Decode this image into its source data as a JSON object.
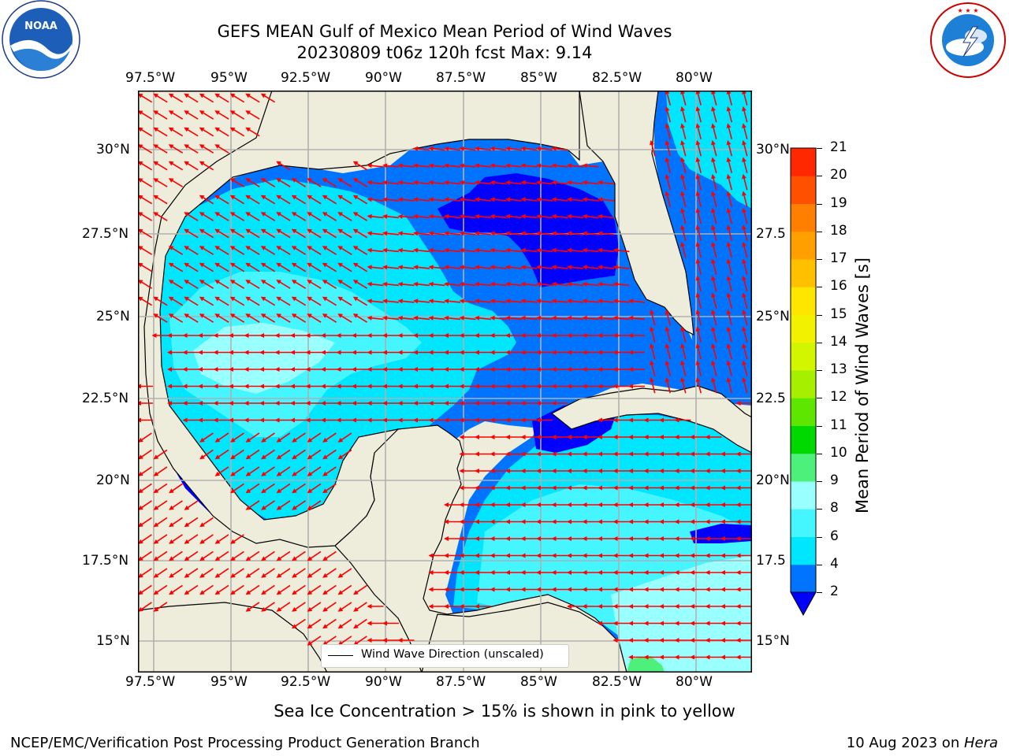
{
  "header": {
    "title_line1": "GEFS MEAN Gulf of Mexico Mean Period of Wind Waves",
    "title_line2": "20230809 t06z 120h fcst   Max: 9.14"
  },
  "logos": {
    "left": {
      "name": "noaa-logo",
      "text": "NOAA",
      "ring_text": "NATIONAL OCEANIC AND ATMOSPHERIC ADMINISTRATION · U.S. DEPARTMENT OF COMMERCE"
    },
    "right": {
      "name": "nws-logo",
      "ring_text": "NATIONAL WEATHER SERVICE"
    }
  },
  "map": {
    "lon_labels": [
      "97.5°W",
      "95°W",
      "92.5°W",
      "90°W",
      "87.5°W",
      "85°W",
      "82.5°W",
      "80°W"
    ],
    "lat_labels": [
      "30°N",
      "27.5°N",
      "25°N",
      "22.5°N",
      "20°N",
      "17.5°N",
      "15°N"
    ],
    "lat_labels_right": [
      "30°N",
      "27.5",
      "25°N",
      "22.5",
      "20°N",
      "17.5",
      "15°N"
    ],
    "lon_range": [
      -98,
      -78.2
    ],
    "lat_range": [
      14,
      31.6
    ],
    "legend_label": "Wind Wave Direction (unscaled)",
    "arrow_color": "#ff0000",
    "land_color": "#eeecda"
  },
  "colorbar": {
    "label": "Mean Period of Wind Waves [s]",
    "ticks": [
      "2",
      "4",
      "6",
      "8",
      "9",
      "10",
      "11",
      "12",
      "13",
      "14",
      "15",
      "16",
      "17",
      "18",
      "19",
      "20",
      "21"
    ],
    "colors": [
      "#0073ff",
      "#00e6ff",
      "#45f5ff",
      "#99ffff",
      "#4df07a",
      "#00d900",
      "#5ee600",
      "#a6ef00",
      "#d2f500",
      "#f2f200",
      "#ffe600",
      "#ffc000",
      "#ffa000",
      "#ff7f00",
      "#ff5000",
      "#ff2800",
      "#ff0000"
    ],
    "under_color": "#0000ff"
  },
  "chart_data": {
    "type": "heatmap",
    "variable": "Mean Period of Wind Waves",
    "units": "s",
    "max_value": 9.14,
    "forecast_cycle": "20230809 t06z",
    "forecast_hour": "120h",
    "x_axis": "longitude",
    "y_axis": "latitude",
    "xlim": [
      -98,
      -78.2
    ],
    "ylim": [
      14,
      31.6
    ],
    "levels": [
      2,
      4,
      6,
      8,
      9,
      10,
      11,
      12,
      13,
      14,
      15,
      16,
      17,
      18,
      19,
      20,
      21
    ],
    "grid": true,
    "legend_placement": "bottom-center",
    "colorbar_placement": "right"
  },
  "footer": {
    "note": "Sea Ice Concentration > 15% is shown in pink to yellow",
    "left": "NCEP/EMC/Verification Post Processing Product Generation Branch",
    "right_prefix": "10 Aug 2023 on ",
    "right_machine": "Hera"
  }
}
